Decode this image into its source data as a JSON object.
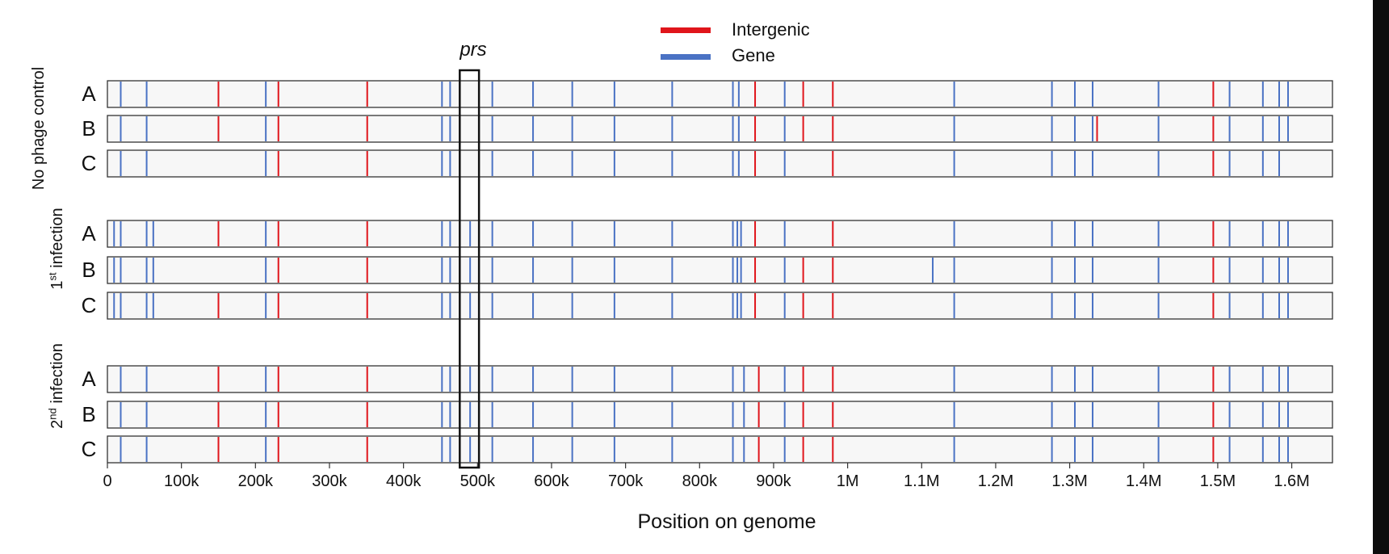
{
  "legend": {
    "intergenic_label": "Intergenic",
    "gene_label": "Gene",
    "intergenic_color": "#e0151b",
    "gene_color": "#4a72c4"
  },
  "annotation": {
    "highlight_label": "prs",
    "highlight_range": [
      476000,
      502000
    ]
  },
  "chart_data": {
    "type": "mutation-track",
    "xlabel": "Position on genome",
    "xlim": [
      0,
      1655000
    ],
    "xticks": [
      0,
      100000,
      200000,
      300000,
      400000,
      500000,
      600000,
      700000,
      800000,
      900000,
      1000000,
      1100000,
      1200000,
      1300000,
      1400000,
      1500000,
      1600000
    ],
    "xtick_labels": [
      "0",
      "100k",
      "200k",
      "300k",
      "400k",
      "500k",
      "600k",
      "700k",
      "800k",
      "900k",
      "1M",
      "1.1M",
      "1.2M",
      "1.3M",
      "1.4M",
      "1.5M",
      "1.6M"
    ],
    "groups": [
      {
        "name": "No phage control",
        "rows": [
          {
            "label": "A",
            "gene": [
              18000,
              53000,
              214000,
              452000,
              463000,
              520000,
              575000,
              628000,
              685000,
              763000,
              845000,
              853000,
              915000,
              1144000,
              1276000,
              1307000,
              1331000,
              1420000,
              1516000,
              1561000,
              1583000,
              1595000
            ],
            "intergenic": [
              150000,
              231000,
              351000,
              875000,
              940000,
              980000,
              1494000
            ]
          },
          {
            "label": "B",
            "gene": [
              18000,
              53000,
              214000,
              452000,
              463000,
              520000,
              575000,
              628000,
              685000,
              763000,
              845000,
              853000,
              915000,
              1144000,
              1276000,
              1307000,
              1331000,
              1420000,
              1516000,
              1561000,
              1583000,
              1595000
            ],
            "intergenic": [
              150000,
              231000,
              351000,
              875000,
              940000,
              980000,
              1337000,
              1494000
            ]
          },
          {
            "label": "C",
            "gene": [
              18000,
              53000,
              214000,
              452000,
              463000,
              520000,
              575000,
              628000,
              685000,
              763000,
              845000,
              853000,
              915000,
              1144000,
              1276000,
              1307000,
              1331000,
              1420000,
              1516000,
              1561000,
              1583000
            ],
            "intergenic": [
              231000,
              351000,
              875000,
              980000,
              1494000
            ]
          }
        ]
      },
      {
        "name": "1st infection",
        "rows": [
          {
            "label": "A",
            "gene": [
              9000,
              18000,
              53000,
              62000,
              214000,
              452000,
              463000,
              490000,
              520000,
              575000,
              628000,
              685000,
              763000,
              845000,
              851000,
              856000,
              915000,
              1144000,
              1276000,
              1307000,
              1331000,
              1420000,
              1516000,
              1561000,
              1583000,
              1595000
            ],
            "intergenic": [
              150000,
              231000,
              351000,
              875000,
              980000,
              1494000
            ]
          },
          {
            "label": "B",
            "gene": [
              9000,
              18000,
              53000,
              62000,
              214000,
              452000,
              463000,
              490000,
              520000,
              575000,
              628000,
              685000,
              763000,
              845000,
              851000,
              856000,
              915000,
              1115000,
              1144000,
              1276000,
              1307000,
              1331000,
              1420000,
              1516000,
              1561000,
              1583000,
              1595000
            ],
            "intergenic": [
              231000,
              351000,
              875000,
              940000,
              980000,
              1494000
            ]
          },
          {
            "label": "C",
            "gene": [
              9000,
              18000,
              53000,
              62000,
              214000,
              452000,
              463000,
              490000,
              520000,
              575000,
              628000,
              685000,
              763000,
              845000,
              851000,
              856000,
              915000,
              1144000,
              1276000,
              1307000,
              1331000,
              1420000,
              1516000,
              1561000,
              1583000,
              1595000
            ],
            "intergenic": [
              150000,
              231000,
              351000,
              875000,
              940000,
              980000,
              1494000
            ]
          }
        ]
      },
      {
        "name": "2nd infection",
        "rows": [
          {
            "label": "A",
            "gene": [
              18000,
              53000,
              214000,
              452000,
              463000,
              490000,
              520000,
              575000,
              628000,
              685000,
              763000,
              845000,
              860000,
              915000,
              1144000,
              1276000,
              1307000,
              1331000,
              1420000,
              1516000,
              1561000,
              1583000,
              1595000
            ],
            "intergenic": [
              150000,
              231000,
              351000,
              880000,
              940000,
              980000,
              1494000
            ]
          },
          {
            "label": "B",
            "gene": [
              18000,
              53000,
              214000,
              452000,
              463000,
              490000,
              520000,
              575000,
              628000,
              685000,
              763000,
              845000,
              860000,
              915000,
              1144000,
              1276000,
              1307000,
              1331000,
              1420000,
              1516000,
              1561000,
              1583000,
              1595000
            ],
            "intergenic": [
              150000,
              231000,
              351000,
              880000,
              940000,
              980000,
              1494000
            ]
          },
          {
            "label": "C",
            "gene": [
              18000,
              53000,
              214000,
              452000,
              463000,
              490000,
              520000,
              575000,
              628000,
              685000,
              763000,
              845000,
              860000,
              915000,
              1144000,
              1276000,
              1307000,
              1331000,
              1420000,
              1516000,
              1561000,
              1583000,
              1595000
            ],
            "intergenic": [
              150000,
              231000,
              351000,
              880000,
              940000,
              980000,
              1494000
            ]
          }
        ]
      }
    ]
  }
}
